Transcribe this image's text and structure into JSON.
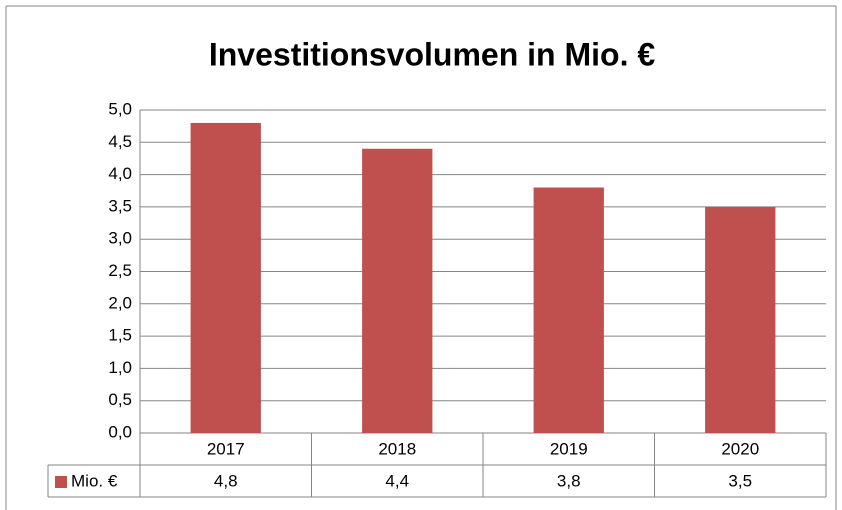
{
  "chart_data": {
    "type": "bar",
    "title": "Investitionsvolumen in Mio. €",
    "categories": [
      "2017",
      "2018",
      "2019",
      "2020"
    ],
    "series": [
      {
        "name": "Mio. €",
        "color": "#c0504d",
        "values": [
          4.8,
          4.4,
          3.8,
          3.5
        ],
        "value_labels": [
          "4,8",
          "4,4",
          "3,8",
          "3,5"
        ]
      }
    ],
    "ylim": [
      0,
      5
    ],
    "yticks": [
      {
        "value": 0,
        "label": "0,0"
      },
      {
        "value": 0.5,
        "label": "0,5"
      },
      {
        "value": 1,
        "label": "1,0"
      },
      {
        "value": 1.5,
        "label": "1,5"
      },
      {
        "value": 2,
        "label": "2,0"
      },
      {
        "value": 2.5,
        "label": "2,5"
      },
      {
        "value": 3,
        "label": "3,0"
      },
      {
        "value": 3.5,
        "label": "3,5"
      },
      {
        "value": 4,
        "label": "4,0"
      },
      {
        "value": 4.5,
        "label": "4,5"
      },
      {
        "value": 5,
        "label": "5,0"
      }
    ],
    "grid": true
  }
}
